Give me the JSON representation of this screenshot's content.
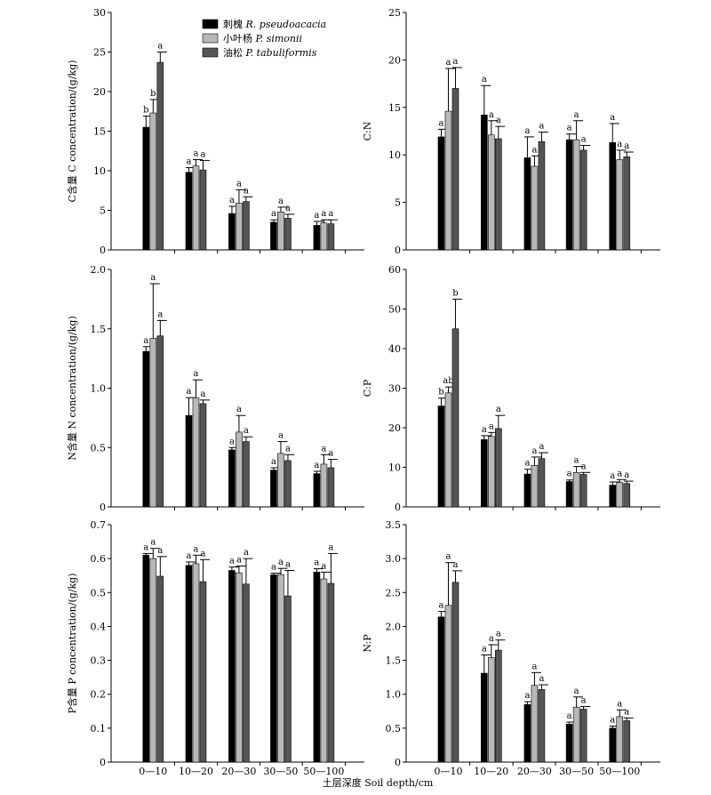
{
  "xlabel": "土层深度 Soil depth/cm",
  "categories": [
    "0—10",
    "10—20",
    "20—30",
    "30—50",
    "50—100"
  ],
  "legend": [
    {
      "zh": "刺槐",
      "sp": "R. pseudoacacia",
      "color": "#000000"
    },
    {
      "zh": "小叶杨",
      "sp": "P. simonii",
      "color": "#b8b8b8"
    },
    {
      "zh": "油松",
      "sp": "P. tabuliformis",
      "color": "#555555"
    }
  ],
  "chart_data": [
    {
      "type": "bar",
      "panel": "c",
      "ylabel": "C含量 C concentration/(g/kg)",
      "ylim": [
        0,
        30
      ],
      "ticks": [
        "0",
        "5",
        "10",
        "15",
        "20",
        "25",
        "30"
      ],
      "categories": [
        "0—10",
        "10—20",
        "20—30",
        "30—50",
        "50—100"
      ],
      "series": [
        {
          "name": "刺槐 R. pseudoacacia",
          "values": [
            15.5,
            9.8,
            4.6,
            3.5,
            3.1
          ],
          "errors": [
            1.4,
            0.6,
            0.9,
            0.3,
            0.5
          ],
          "labels": [
            "b",
            "a",
            "a",
            "a",
            "a"
          ]
        },
        {
          "name": "小叶杨 P. simonii",
          "values": [
            17.3,
            10.6,
            5.9,
            4.8,
            3.4
          ],
          "errors": [
            1.7,
            0.8,
            1.7,
            0.6,
            0.4
          ],
          "labels": [
            "b",
            "a",
            "a",
            "a",
            "a"
          ]
        },
        {
          "name": "油松 P. tabuliformis",
          "values": [
            23.7,
            10.1,
            6.1,
            4.0,
            3.3
          ],
          "errors": [
            1.3,
            1.2,
            0.6,
            0.5,
            0.5
          ],
          "labels": [
            "a",
            "a",
            "a",
            "a",
            "a"
          ]
        }
      ]
    },
    {
      "type": "bar",
      "panel": "cn",
      "ylabel": "C:N",
      "ylim": [
        0,
        25
      ],
      "ticks": [
        "0",
        "5",
        "10",
        "15",
        "20",
        "25"
      ],
      "categories": [
        "0—10",
        "10—20",
        "20—30",
        "30—50",
        "50—100"
      ],
      "series": [
        {
          "name": "刺槐 R. pseudoacacia",
          "values": [
            11.9,
            14.2,
            9.7,
            11.6,
            11.3
          ],
          "errors": [
            0.8,
            3.1,
            2.2,
            0.6,
            2.0
          ],
          "labels": [
            "a",
            "a",
            "a",
            "a",
            "a"
          ]
        },
        {
          "name": "小叶杨 P. simonii",
          "values": [
            14.6,
            12.1,
            8.8,
            11.6,
            9.5
          ],
          "errors": [
            4.5,
            1.5,
            1.1,
            2.0,
            1.0
          ],
          "labels": [
            "a",
            "a",
            "a",
            "a",
            "a"
          ]
        },
        {
          "name": "油松 P. tabuliformis",
          "values": [
            17.0,
            11.7,
            11.4,
            10.5,
            9.8
          ],
          "errors": [
            2.2,
            1.3,
            1.0,
            0.5,
            0.5
          ],
          "labels": [
            "a",
            "a",
            "a",
            "a",
            "a"
          ]
        }
      ]
    },
    {
      "type": "bar",
      "panel": "n",
      "ylabel": "N含量 N concentration/(g/kg)",
      "ylim": [
        0,
        2.0
      ],
      "ticks": [
        "0",
        "0.5",
        "1.0",
        "1.5",
        "2.0"
      ],
      "categories": [
        "0—10",
        "10—20",
        "20—30",
        "30—50",
        "50—100"
      ],
      "series": [
        {
          "name": "刺槐 R. pseudoacacia",
          "values": [
            1.31,
            0.77,
            0.48,
            0.31,
            0.28
          ],
          "errors": [
            0.04,
            0.15,
            0.02,
            0.02,
            0.02
          ],
          "labels": [
            "a",
            "a",
            "a",
            "a",
            "a"
          ]
        },
        {
          "name": "小叶杨 P. simonii",
          "values": [
            1.42,
            0.92,
            0.63,
            0.45,
            0.36
          ],
          "errors": [
            0.46,
            0.15,
            0.14,
            0.1,
            0.08
          ],
          "labels": [
            "a",
            "a",
            "a",
            "a",
            "a"
          ]
        },
        {
          "name": "油松 P. tabuliformis",
          "values": [
            1.44,
            0.87,
            0.55,
            0.39,
            0.33
          ],
          "errors": [
            0.13,
            0.03,
            0.04,
            0.05,
            0.07
          ],
          "labels": [
            "a",
            "a",
            "a",
            "a",
            "a"
          ]
        }
      ]
    },
    {
      "type": "bar",
      "panel": "cp",
      "ylabel": "C:P",
      "ylim": [
        0,
        60
      ],
      "ticks": [
        "0",
        "10",
        "20",
        "30",
        "40",
        "50",
        "60"
      ],
      "categories": [
        "0—10",
        "10—20",
        "20—30",
        "30—50",
        "50—100"
      ],
      "series": [
        {
          "name": "刺槐 R. pseudoacacia",
          "values": [
            25.5,
            17.0,
            8.3,
            6.4,
            5.5
          ],
          "errors": [
            2.0,
            1.0,
            1.2,
            0.4,
            0.8
          ],
          "labels": [
            "b",
            "a",
            "a",
            "a",
            "a"
          ]
        },
        {
          "name": "小叶杨 P. simonii",
          "values": [
            28.8,
            17.8,
            10.5,
            8.7,
            6.2
          ],
          "errors": [
            1.5,
            1.0,
            2.1,
            1.5,
            0.7
          ],
          "labels": [
            "ab",
            "a",
            "a",
            "a",
            "a"
          ]
        },
        {
          "name": "油松 P. tabuliformis",
          "values": [
            45.0,
            19.8,
            12.2,
            8.2,
            5.9
          ],
          "errors": [
            7.5,
            3.3,
            1.5,
            0.5,
            0.6
          ],
          "labels": [
            "b",
            "a",
            "a",
            "a",
            "a"
          ]
        }
      ]
    },
    {
      "type": "bar",
      "panel": "p",
      "ylabel": "P含量 P concentration/(g/kg)",
      "ylim": [
        0,
        0.7
      ],
      "ticks": [
        "0",
        "0.1",
        "0.2",
        "0.3",
        "0.4",
        "0.5",
        "0.6",
        "0.7"
      ],
      "categories": [
        "0—10",
        "10—20",
        "20—30",
        "30—50",
        "50—100"
      ],
      "series": [
        {
          "name": "刺槐 R. pseudoacacia",
          "values": [
            0.61,
            0.58,
            0.565,
            0.552,
            0.56
          ],
          "errors": [
            0.005,
            0.01,
            0.01,
            0.005,
            0.01
          ],
          "labels": [
            "a",
            "a",
            "a",
            "a",
            "a"
          ]
        },
        {
          "name": "小叶杨 P. simonii",
          "values": [
            0.6,
            0.585,
            0.558,
            0.553,
            0.54
          ],
          "errors": [
            0.03,
            0.025,
            0.02,
            0.018,
            0.02
          ],
          "labels": [
            "a",
            "a",
            "a",
            "a",
            "a"
          ]
        },
        {
          "name": "油松 P. tabuliformis",
          "values": [
            0.548,
            0.532,
            0.525,
            0.49,
            0.527
          ],
          "errors": [
            0.058,
            0.065,
            0.075,
            0.075,
            0.088
          ],
          "labels": [
            "a",
            "a",
            "a",
            "a",
            "a"
          ]
        }
      ]
    },
    {
      "type": "bar",
      "panel": "np",
      "ylabel": "N:P",
      "ylim": [
        0,
        3.5
      ],
      "ticks": [
        "0",
        "0.5",
        "1.0",
        "1.5",
        "2.0",
        "2.5",
        "3.0",
        "3.5"
      ],
      "categories": [
        "0—10",
        "10—20",
        "20—30",
        "30—50",
        "50—100"
      ],
      "series": [
        {
          "name": "刺槐 R. pseudoacacia",
          "values": [
            2.14,
            1.31,
            0.85,
            0.56,
            0.5
          ],
          "errors": [
            0.08,
            0.27,
            0.04,
            0.03,
            0.03
          ],
          "labels": [
            "a",
            "a",
            "a",
            "a",
            "a"
          ]
        },
        {
          "name": "小叶杨 P. simonii",
          "values": [
            2.31,
            1.54,
            1.13,
            0.81,
            0.67
          ],
          "errors": [
            0.63,
            0.19,
            0.19,
            0.15,
            0.1
          ],
          "labels": [
            "a",
            "a",
            "a",
            "a",
            "a"
          ]
        },
        {
          "name": "油松 P. tabuliformis",
          "values": [
            2.65,
            1.65,
            1.07,
            0.78,
            0.61
          ],
          "errors": [
            0.17,
            0.15,
            0.07,
            0.04,
            0.04
          ],
          "labels": [
            "a",
            "a",
            "a",
            "a",
            "a"
          ]
        }
      ]
    }
  ]
}
